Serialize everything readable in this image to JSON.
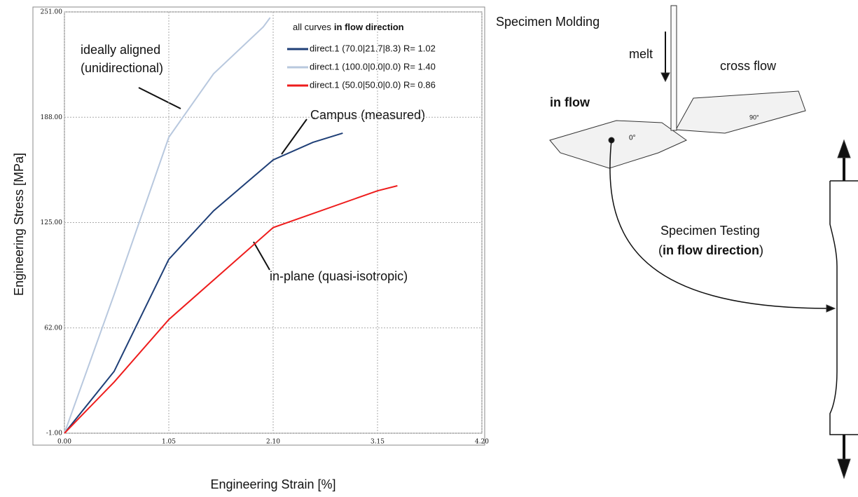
{
  "chart_data": {
    "type": "line",
    "x_label": "Engineering Strain [%]",
    "y_label": "Engineering Stress [MPa]",
    "legend_title": {
      "text": "all curves",
      "bold": "in flow direction"
    },
    "xlim": [
      0,
      4.2
    ],
    "ylim": [
      -1,
      251
    ],
    "xticks": [
      {
        "value": 0,
        "label": "0.00"
      },
      {
        "value": 1.05,
        "label": "1.05"
      },
      {
        "value": 2.1,
        "label": "2.10"
      },
      {
        "value": 3.15,
        "label": "3.15"
      },
      {
        "value": 4.2,
        "label": "4.20"
      }
    ],
    "yticks": [
      {
        "value": -1,
        "label": "-1.00"
      },
      {
        "value": 62,
        "label": "62.00"
      },
      {
        "value": 125,
        "label": "125.00"
      },
      {
        "value": 188,
        "label": "188.00"
      },
      {
        "value": 251,
        "label": "251.00"
      }
    ],
    "grid": true,
    "series": [
      {
        "name": "direct.1 (70.0|21.7|8.3) R= 1.02",
        "color": "#1f3f77",
        "x": [
          0,
          0.5,
          1.05,
          1.5,
          2.1,
          2.5,
          2.8
        ],
        "values": [
          -1,
          36,
          103,
          132,
          162.5,
          173,
          178.5
        ]
      },
      {
        "name": "direct.1 (100.0|0.0|0.0) R= 1.40",
        "color": "#b8c8de",
        "x": [
          0,
          0.5,
          1.05,
          1.5,
          2.0,
          2.07
        ],
        "values": [
          -1,
          82,
          176,
          214,
          242,
          247.6
        ]
      },
      {
        "name": "direct.1 (50.0|50.0|0.0) R= 0.86",
        "color": "#ee1c1c",
        "x": [
          0,
          0.5,
          1.05,
          2.1,
          3.15,
          3.35
        ],
        "values": [
          -1,
          29.6,
          67,
          122,
          144,
          147
        ]
      }
    ],
    "annotations": [
      "ideally aligned",
      "(unidirectional)",
      "Campus (measured)",
      "in-plane (quasi-isotropic)"
    ]
  },
  "diagram": {
    "molding": "Specimen Molding",
    "melt": "melt",
    "cross_flow": "cross flow",
    "in_flow": "in flow",
    "angle_0": "0°",
    "angle_90": "90°",
    "testing": "Specimen Testing",
    "testing_open": "(",
    "testing_bold": "in flow direction",
    "testing_close": ")"
  }
}
